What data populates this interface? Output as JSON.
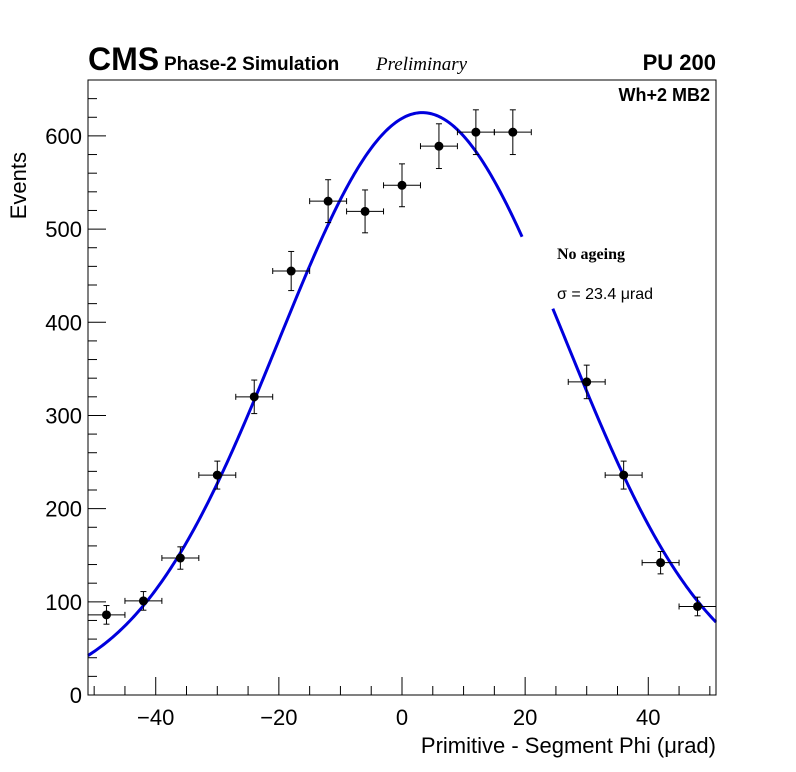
{
  "chart_data": {
    "type": "scatter",
    "experiment": "CMS",
    "subtitle": "Phase-2 Simulation",
    "status": "Preliminary",
    "pileup": "PU 200",
    "chamber": "Wh+2 MB2",
    "legend_title": "No ageing",
    "sigma_label": "σ = 23.4  μrad",
    "xlabel": "Primitive - Segment Phi (μrad)",
    "ylabel": "Events",
    "xlim": [
      -51,
      51
    ],
    "ylim": [
      0,
      660
    ],
    "x_ticks": [
      -40,
      -20,
      0,
      20,
      40
    ],
    "y_ticks": [
      0,
      100,
      200,
      300,
      400,
      500,
      600
    ],
    "series": [
      {
        "name": "data",
        "x": [
          -48,
          -42,
          -36,
          -30,
          -24,
          -18,
          -12,
          -6,
          0,
          6,
          12,
          18,
          30,
          36,
          42,
          48
        ],
        "y": [
          86,
          101,
          147,
          236,
          320,
          455,
          530,
          519,
          547,
          589,
          604,
          604,
          336,
          236,
          142,
          95
        ],
        "x_err": 3,
        "y_err": [
          10,
          10,
          12,
          15,
          18,
          21,
          23,
          23,
          23,
          24,
          24,
          24,
          18,
          15,
          12,
          10
        ]
      },
      {
        "name": "gaussian fit",
        "color": "#0000dd",
        "amplitude": 625,
        "mean": 3.3,
        "sigma": 23.4,
        "segments": [
          [
            -51,
            19.5
          ],
          [
            24.5,
            51
          ]
        ]
      }
    ]
  }
}
